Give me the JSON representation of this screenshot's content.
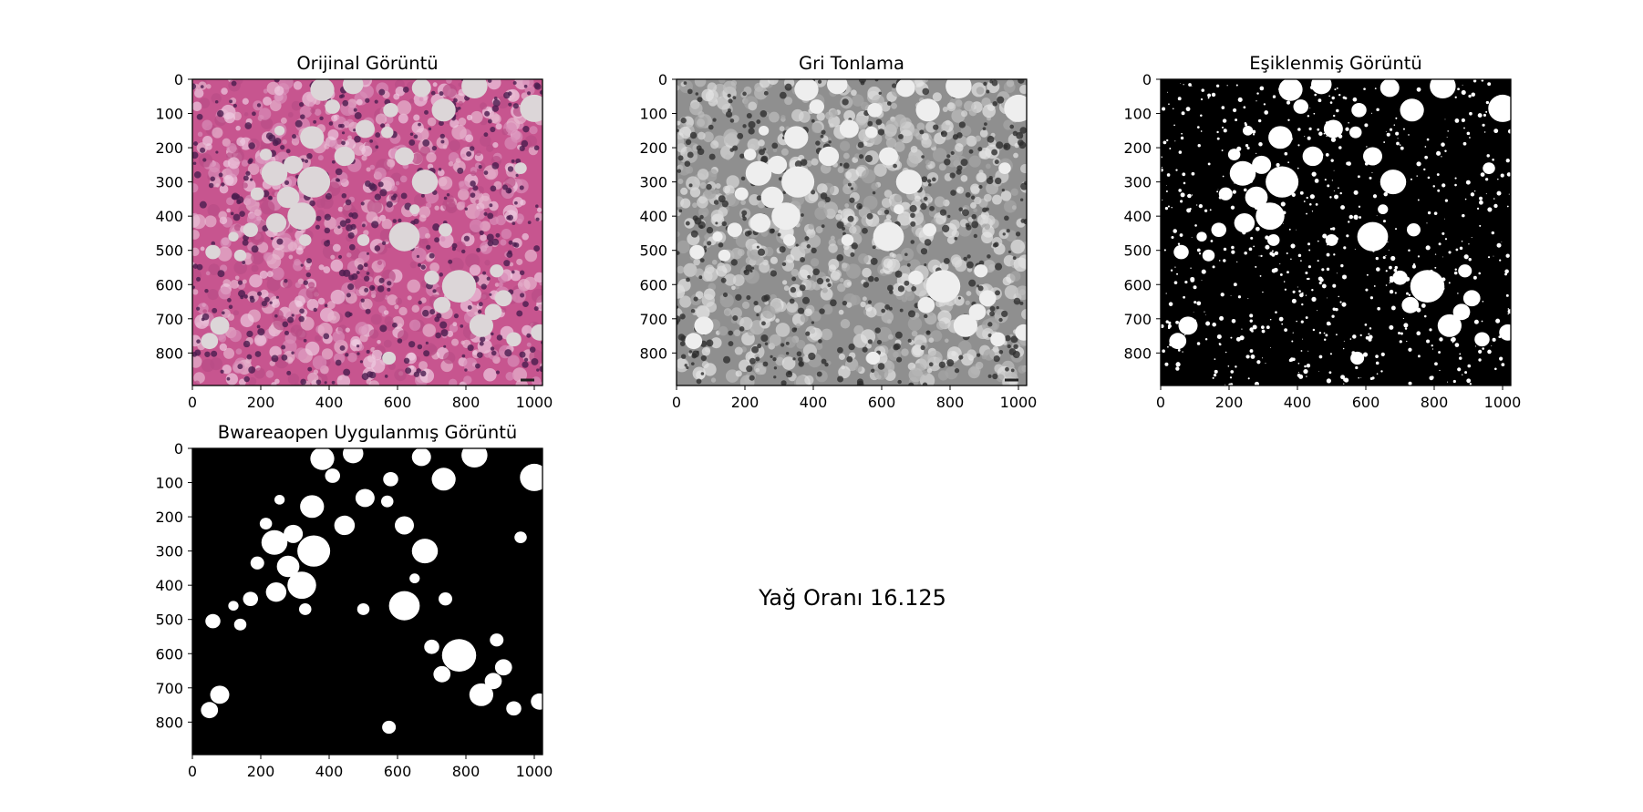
{
  "chart_data": [
    {
      "type": "image",
      "title": "Orijinal Görüntü",
      "render": "he-stain",
      "background": "#c7558f",
      "blob_fill": "#dcd6d8",
      "xlim": [
        0,
        1024
      ],
      "ylim": [
        895,
        0
      ],
      "xticks": [
        0,
        200,
        400,
        600,
        800,
        1000
      ],
      "yticks": [
        0,
        100,
        200,
        300,
        400,
        500,
        600,
        700,
        800
      ]
    },
    {
      "type": "image",
      "title": "Gri Tonlama",
      "render": "grayscale",
      "background": "#8f8f8f",
      "blob_fill": "#eeeeee",
      "xlim": [
        0,
        1024
      ],
      "ylim": [
        895,
        0
      ],
      "xticks": [
        0,
        200,
        400,
        600,
        800,
        1000
      ],
      "yticks": [
        0,
        100,
        200,
        300,
        400,
        500,
        600,
        700,
        800
      ]
    },
    {
      "type": "image",
      "title": "Eşiklenmiş Görüntü",
      "render": "binary-noisy",
      "background": "#000000",
      "blob_fill": "#ffffff",
      "xlim": [
        0,
        1024
      ],
      "ylim": [
        895,
        0
      ],
      "xticks": [
        0,
        200,
        400,
        600,
        800,
        1000
      ],
      "yticks": [
        0,
        100,
        200,
        300,
        400,
        500,
        600,
        700,
        800
      ]
    },
    {
      "type": "image",
      "title": "Bwareaopen Uygulanmış Görüntü",
      "render": "binary-clean",
      "background": "#000000",
      "blob_fill": "#ffffff",
      "xlim": [
        0,
        1024
      ],
      "ylim": [
        895,
        0
      ],
      "xticks": [
        0,
        200,
        400,
        600,
        800,
        1000
      ],
      "yticks": [
        0,
        100,
        200,
        300,
        400,
        500,
        600,
        700,
        800
      ]
    }
  ],
  "fat_blobs": [
    [
      380,
      30,
      35
    ],
    [
      470,
      15,
      30
    ],
    [
      670,
      25,
      28
    ],
    [
      825,
      20,
      38
    ],
    [
      1000,
      85,
      42
    ],
    [
      735,
      90,
      35
    ],
    [
      505,
      145,
      28
    ],
    [
      580,
      90,
      22
    ],
    [
      350,
      170,
      35
    ],
    [
      445,
      225,
      30
    ],
    [
      240,
      275,
      38
    ],
    [
      295,
      250,
      28
    ],
    [
      355,
      300,
      48
    ],
    [
      280,
      345,
      33
    ],
    [
      190,
      335,
      20
    ],
    [
      320,
      400,
      42
    ],
    [
      245,
      420,
      30
    ],
    [
      170,
      440,
      22
    ],
    [
      620,
      225,
      28
    ],
    [
      680,
      300,
      38
    ],
    [
      620,
      460,
      45
    ],
    [
      740,
      440,
      20
    ],
    [
      780,
      605,
      50
    ],
    [
      880,
      680,
      25
    ],
    [
      845,
      720,
      35
    ],
    [
      910,
      640,
      25
    ],
    [
      700,
      580,
      22
    ],
    [
      730,
      660,
      25
    ],
    [
      80,
      720,
      28
    ],
    [
      50,
      765,
      25
    ],
    [
      60,
      505,
      22
    ],
    [
      500,
      470,
      18
    ],
    [
      940,
      760,
      22
    ],
    [
      1015,
      740,
      25
    ],
    [
      575,
      815,
      20
    ],
    [
      215,
      220,
      18
    ],
    [
      255,
      150,
      15
    ],
    [
      120,
      460,
      15
    ],
    [
      140,
      515,
      18
    ],
    [
      570,
      155,
      18
    ],
    [
      410,
      80,
      22
    ],
    [
      960,
      260,
      18
    ],
    [
      890,
      560,
      20
    ],
    [
      330,
      470,
      18
    ],
    [
      650,
      380,
      15
    ]
  ],
  "annotation": {
    "ratio_text": "Yağ Oranı 16.125"
  }
}
